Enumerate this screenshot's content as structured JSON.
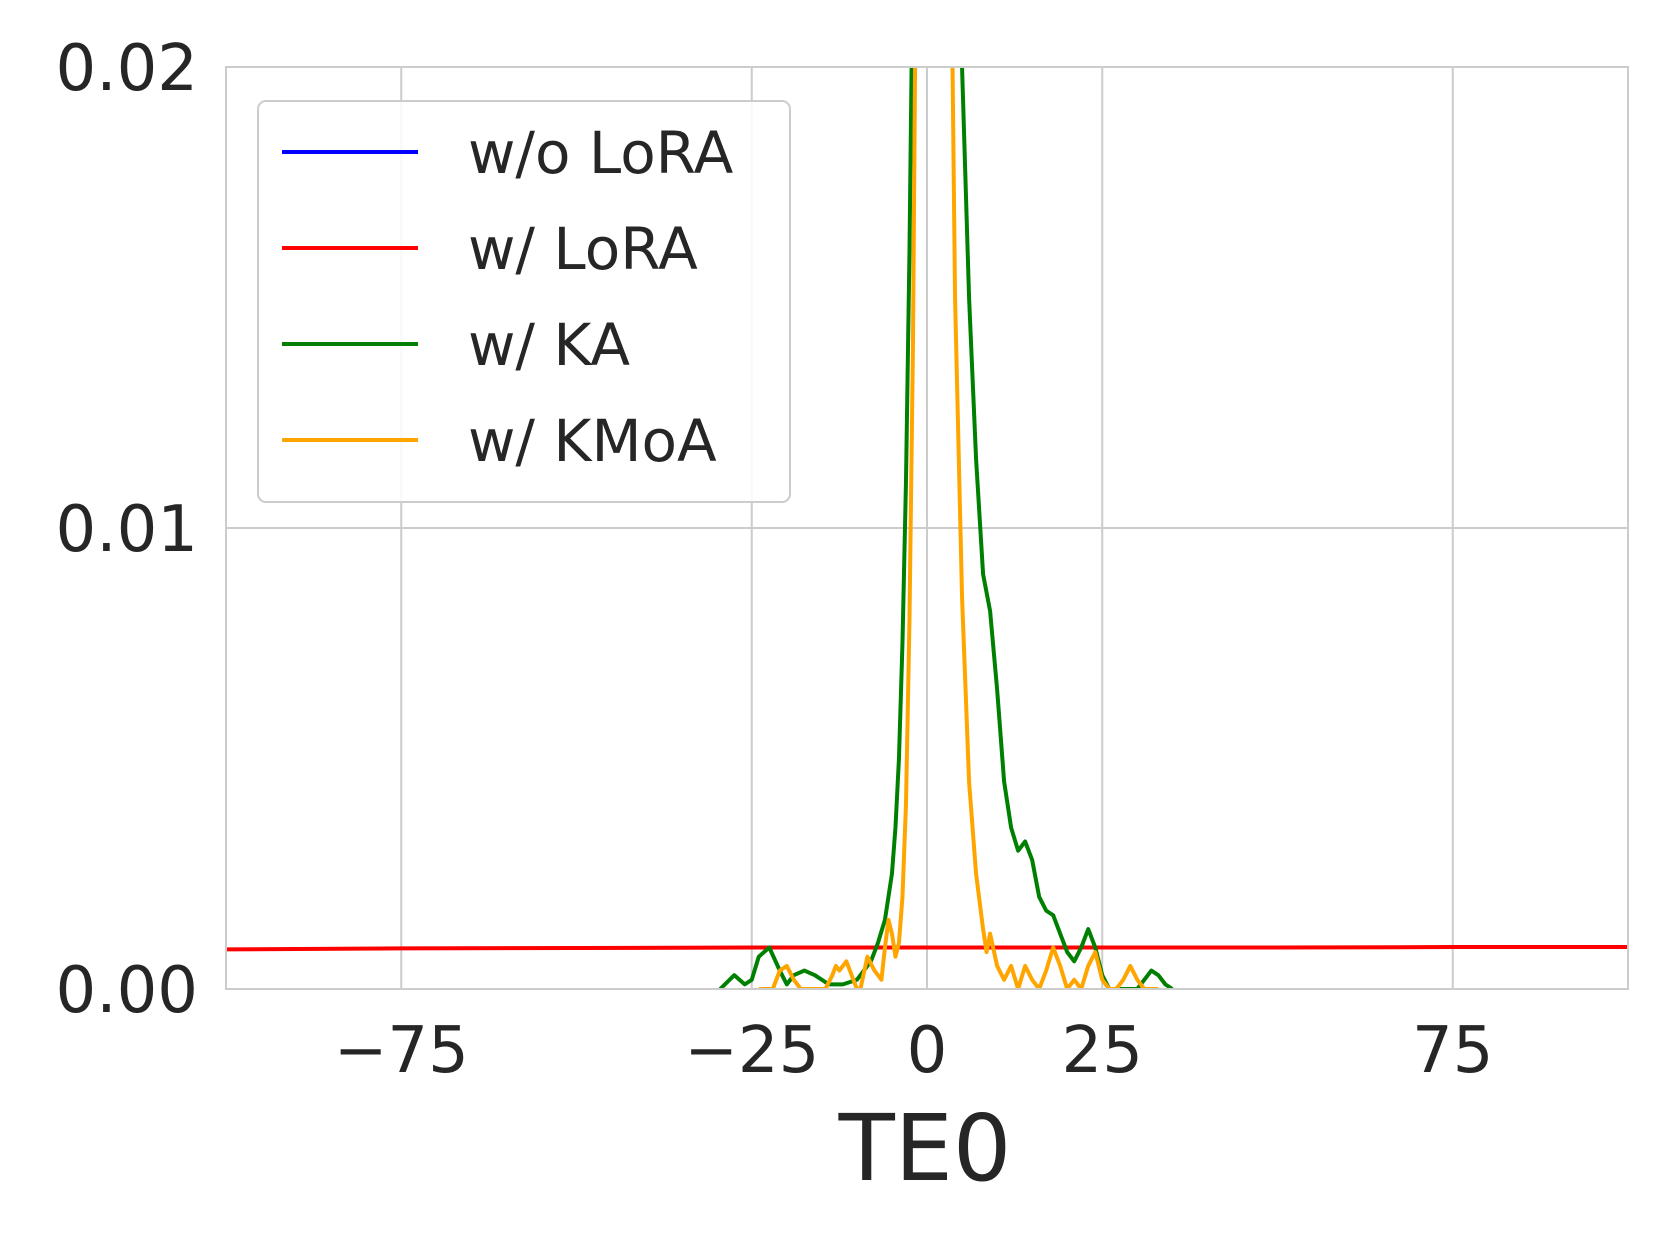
{
  "chart_data": {
    "type": "line",
    "title": "",
    "xlabel": "TE0",
    "ylabel": "",
    "xlim": [
      -100,
      100
    ],
    "ylim": [
      0,
      0.02
    ],
    "x_ticks": [
      -75,
      -25,
      0,
      25,
      75
    ],
    "x_tick_labels": [
      "−75",
      "−25",
      "0",
      "25",
      "75"
    ],
    "y_ticks": [
      0,
      0.01,
      0.02
    ],
    "y_tick_labels": [
      "0.00",
      "0.01",
      "0.02"
    ],
    "grid": true,
    "legend_position": "top-left",
    "series": [
      {
        "name": "w/o LoRA",
        "color": "#0000ff",
        "x": [
          -100,
          100
        ],
        "y": [
          0,
          0
        ]
      },
      {
        "name": "w/ LoRA",
        "color": "#ff0000",
        "x": [
          -100,
          -75,
          -50,
          -25,
          0,
          25,
          50,
          75,
          100
        ],
        "y": [
          0.00086,
          0.00088,
          0.00089,
          0.0009,
          0.0009,
          0.0009,
          0.0009,
          0.00091,
          0.00091
        ]
      },
      {
        "name": "w/ KA",
        "color": "#008000",
        "x": [
          -29.5,
          -27.5,
          -26,
          -25,
          -24,
          -22.5,
          -21,
          -20,
          -19,
          -17.5,
          -16,
          -14,
          -12,
          -10,
          -8,
          -7,
          -6,
          -5,
          -4.5,
          -4,
          -3.5,
          -3,
          -2.5,
          -2.2,
          -1.8,
          4,
          5,
          6,
          7,
          8,
          9,
          10,
          11,
          12,
          13,
          14,
          15,
          16,
          17,
          18,
          19,
          20,
          21,
          22,
          23,
          24,
          25,
          26,
          27,
          28,
          29,
          30,
          31,
          32,
          33,
          34,
          35
        ],
        "y": [
          0,
          0.0003,
          0.0001,
          0.0002,
          0.0007,
          0.0009,
          0.0004,
          0.0001,
          0.0003,
          0.0004,
          0.0003,
          0.0001,
          0.0001,
          0.0002,
          0.0006,
          0.001,
          0.0015,
          0.0025,
          0.0035,
          0.005,
          0.0075,
          0.011,
          0.016,
          0.02,
          0.024,
          0.024,
          0.02,
          0.015,
          0.0115,
          0.009,
          0.0082,
          0.0065,
          0.0045,
          0.0035,
          0.003,
          0.0032,
          0.0028,
          0.002,
          0.0017,
          0.0016,
          0.0012,
          0.0008,
          0.0006,
          0.0009,
          0.0013,
          0.0009,
          0.0003,
          0,
          0,
          0,
          0,
          0,
          0.0002,
          0.0004,
          0.0003,
          0.0001,
          0
        ]
      },
      {
        "name": "w/ KMoA",
        "color": "#ffa500",
        "x": [
          -24,
          -22,
          -21,
          -20,
          -19,
          -18,
          -16,
          -14.5,
          -13.5,
          -13,
          -12.5,
          -11.5,
          -10.5,
          -10,
          -9.5,
          -8.5,
          -7.5,
          -6.5,
          -6,
          -5.5,
          -5,
          -4.5,
          -4,
          -3.5,
          -3,
          -2.5,
          -2,
          -1.6,
          3.5,
          4,
          5,
          6,
          7,
          8,
          8.5,
          9,
          10,
          11,
          12,
          13,
          14,
          15,
          16,
          17,
          18,
          19,
          20,
          21,
          22,
          23,
          24,
          25,
          26,
          27,
          28,
          29,
          30,
          31,
          32,
          33
        ],
        "y": [
          0,
          0,
          0.0004,
          0.0005,
          0.0002,
          0,
          0,
          0,
          0.0003,
          0.0005,
          0.0004,
          0.0006,
          0.0002,
          0,
          0,
          0.0007,
          0.0004,
          0.0002,
          0.0009,
          0.0015,
          0.0012,
          0.0007,
          0.001,
          0.002,
          0.004,
          0.008,
          0.014,
          0.022,
          0.022,
          0.015,
          0.0085,
          0.0045,
          0.0025,
          0.0013,
          0.0008,
          0.0012,
          0.0005,
          0.0002,
          0.0005,
          0,
          0.0005,
          0.0002,
          0,
          0.0004,
          0.0009,
          0.0005,
          0,
          0.0002,
          0,
          0.0005,
          0.0008,
          0.0002,
          0,
          0,
          0.0002,
          0.0005,
          0.0002,
          0,
          0,
          0
        ]
      }
    ]
  }
}
